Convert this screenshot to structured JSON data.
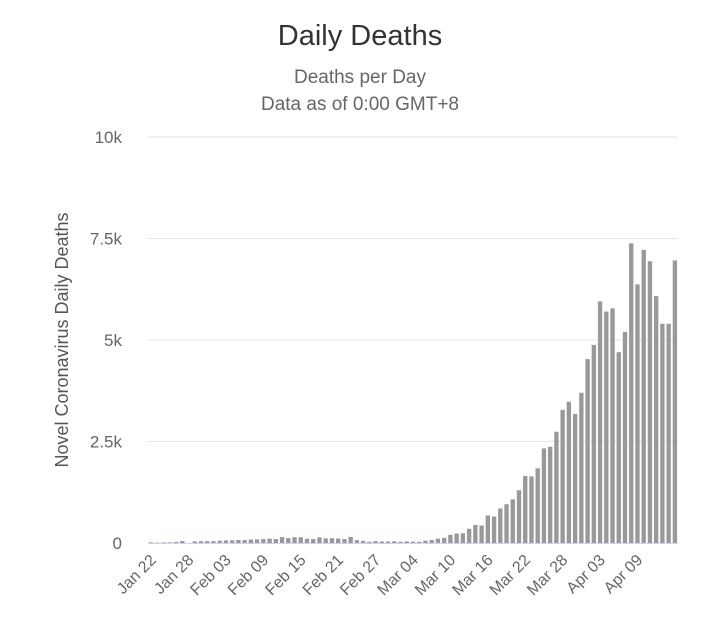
{
  "chart_data": {
    "type": "bar",
    "title": "Daily Deaths",
    "subtitle": [
      "Deaths per Day",
      "Data as of 0:00 GMT+8"
    ],
    "xlabel": "",
    "ylabel": "Novel Coronavirus Daily Deaths",
    "ylim": [
      0,
      10000
    ],
    "yticks": [
      0,
      2500,
      5000,
      7500,
      10000
    ],
    "ytick_labels": [
      "0",
      "2.5k",
      "5k",
      "7.5k",
      "10k"
    ],
    "xtick_labels": [
      "Jan 22",
      "Jan 28",
      "Feb 03",
      "Feb 09",
      "Feb 15",
      "Feb 21",
      "Feb 27",
      "Mar 04",
      "Mar 10",
      "Mar 16",
      "Mar 22",
      "Mar 28",
      "Apr 03",
      "Apr 09"
    ],
    "x_start": "Jan 22",
    "x_end": "Apr 14",
    "bar_color": "#999999",
    "grid": true,
    "values": [
      17,
      8,
      16,
      14,
      26,
      49,
      2,
      38,
      42,
      46,
      45,
      57,
      64,
      66,
      73,
      73,
      86,
      89,
      97,
      108,
      97,
      146,
      121,
      143,
      142,
      105,
      98,
      139,
      115,
      118,
      109,
      97,
      150,
      71,
      52,
      29,
      44,
      37,
      35,
      42,
      31,
      38,
      31,
      30,
      57,
      75,
      108,
      129,
      202,
      233,
      240,
      350,
      445,
      431,
      676,
      652,
      850,
      955,
      1075,
      1300,
      1650,
      1640,
      1840,
      2330,
      2370,
      2740,
      3280,
      3480,
      3180,
      3700,
      4530,
      4880,
      5950,
      5700,
      5780,
      4700,
      5200,
      7380,
      6370,
      7220,
      6940,
      6080,
      5400,
      5400,
      6960
    ]
  }
}
